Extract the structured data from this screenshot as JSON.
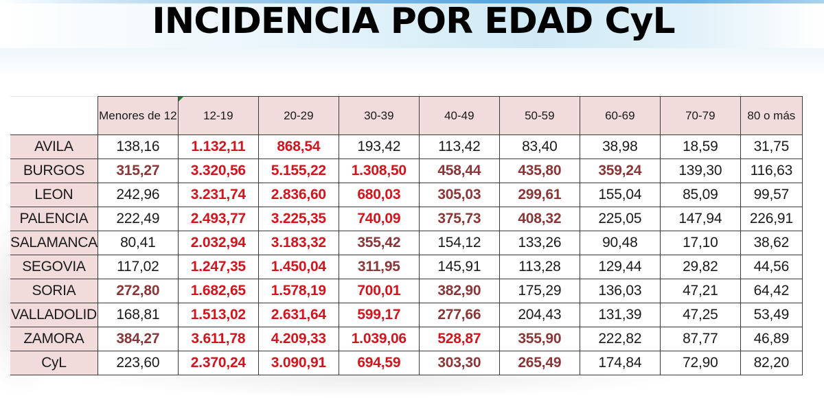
{
  "title": "INCIDENCIA POR EDAD CyL",
  "colors": {
    "header_fill": "#f2dcdb",
    "high_red": "#d4141d",
    "mid_darkred": "#8a3636",
    "normal_black": "#1a1a1a"
  },
  "table": {
    "columns": [
      "Menores de 12",
      "12-19",
      "20-29",
      "30-39",
      "40-49",
      "50-59",
      "60-69",
      "70-79",
      "80 o más"
    ],
    "rows": [
      {
        "label": "AVILA",
        "values": [
          "138,16",
          "1.132,11",
          "868,54",
          "193,42",
          "113,42",
          "83,40",
          "38,98",
          "18,59",
          "31,75"
        ]
      },
      {
        "label": "BURGOS",
        "values": [
          "315,27",
          "3.320,56",
          "5.155,22",
          "1.308,50",
          "458,44",
          "435,80",
          "359,24",
          "139,30",
          "116,63"
        ]
      },
      {
        "label": "LEON",
        "values": [
          "242,96",
          "3.231,74",
          "2.836,60",
          "680,03",
          "305,03",
          "299,61",
          "155,04",
          "85,09",
          "99,57"
        ]
      },
      {
        "label": "PALENCIA",
        "values": [
          "222,49",
          "2.493,77",
          "3.225,35",
          "740,09",
          "375,73",
          "408,32",
          "225,05",
          "147,94",
          "226,91"
        ]
      },
      {
        "label": "SALAMANCA",
        "values": [
          "80,41",
          "2.032,94",
          "3.183,32",
          "355,42",
          "154,12",
          "133,26",
          "90,48",
          "17,10",
          "38,62"
        ]
      },
      {
        "label": "SEGOVIA",
        "values": [
          "117,02",
          "1.247,35",
          "1.450,04",
          "311,95",
          "145,91",
          "113,28",
          "129,44",
          "29,82",
          "44,56"
        ]
      },
      {
        "label": "SORIA",
        "values": [
          "272,80",
          "1.682,65",
          "1.578,19",
          "700,01",
          "382,90",
          "175,29",
          "136,03",
          "47,21",
          "64,42"
        ]
      },
      {
        "label": "VALLADOLID",
        "values": [
          "168,81",
          "1.513,02",
          "2.631,64",
          "599,17",
          "277,66",
          "204,43",
          "131,39",
          "47,25",
          "53,49"
        ]
      },
      {
        "label": "ZAMORA",
        "values": [
          "384,27",
          "3.611,78",
          "4.209,33",
          "1.039,06",
          "528,87",
          "355,90",
          "222,82",
          "87,77",
          "46,89"
        ]
      },
      {
        "label": "CyL",
        "values": [
          "223,60",
          "2.370,24",
          "3.090,91",
          "694,59",
          "303,30",
          "265,49",
          "174,84",
          "72,90",
          "82,20"
        ]
      }
    ]
  }
}
